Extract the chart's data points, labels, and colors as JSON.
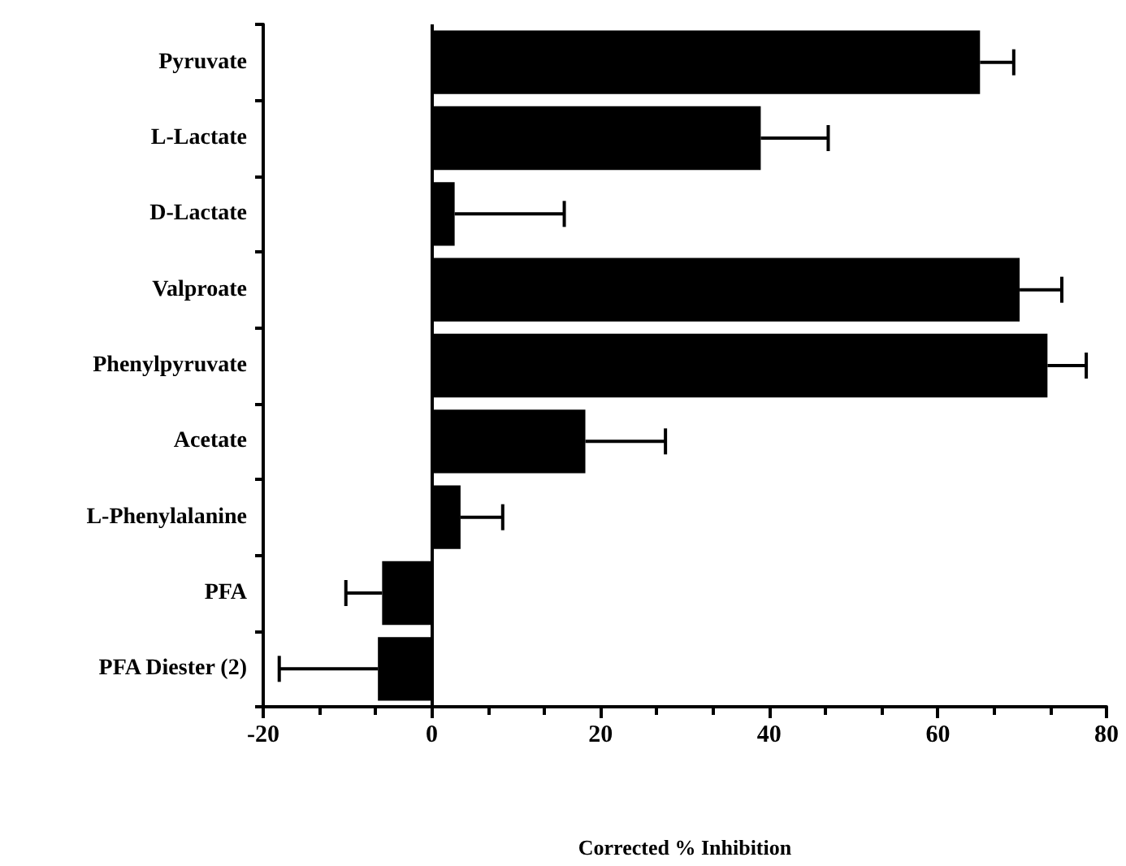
{
  "chart_data": {
    "type": "bar",
    "orientation": "horizontal",
    "xlabel": "Corrected % Inhibition",
    "categories": [
      "Pyruvate",
      "L-Lactate",
      "D-Lactate",
      "Valproate",
      "Phenylpyruvate",
      "Acetate",
      "L-Phenylalanine",
      "PFA",
      "PFA Diester (2)"
    ],
    "series": [
      {
        "color": "#000000",
        "values": [
          65,
          39,
          2.7,
          69.7,
          73,
          18.2,
          3.4,
          -5.9,
          -6.4
        ],
        "errors": [
          4,
          8,
          13,
          5,
          4.6,
          9.5,
          5,
          4.3,
          11.7
        ]
      }
    ],
    "xlim": [
      -20,
      80
    ],
    "xticks": [
      -20,
      0,
      20,
      40,
      60,
      80
    ],
    "ref_lines": [
      {
        "axis": "x",
        "value": 0,
        "color": "#000000"
      }
    ]
  }
}
